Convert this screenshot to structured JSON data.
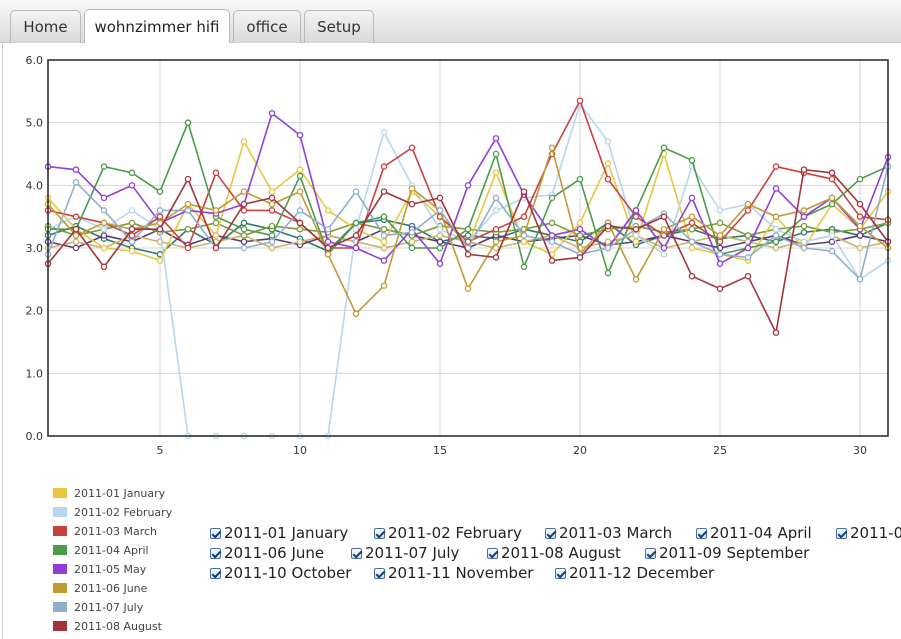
{
  "tabs": [
    {
      "label": "Home",
      "active": false
    },
    {
      "label": "wohnzimmer hifi",
      "active": true
    },
    {
      "label": "office",
      "active": false
    },
    {
      "label": "Setup",
      "active": false
    }
  ],
  "chart_data": {
    "type": "line",
    "title": "",
    "xlabel": "",
    "ylabel": "",
    "xlim": [
      1,
      31
    ],
    "ylim": [
      0,
      6
    ],
    "x_ticks": [
      "5",
      "10",
      "15",
      "20",
      "25",
      "30"
    ],
    "y_ticks": [
      "0.0",
      "1.0",
      "2.0",
      "3.0",
      "4.0",
      "5.0",
      "6.0"
    ],
    "grid": true,
    "legend": "bottom-left",
    "series": [
      {
        "name": "2011-01 January",
        "color": "#e8c73f",
        "values": [
          3.8,
          3.3,
          3.0,
          2.95,
          2.8,
          3.7,
          3.2,
          4.7,
          3.9,
          4.25,
          3.6,
          3.3,
          3.1,
          3.9,
          3.5,
          3.05,
          4.2,
          3.1,
          2.9,
          3.4,
          4.35,
          3.1,
          4.5,
          3.0,
          2.9,
          2.8,
          3.5,
          3.0,
          3.7,
          3.3,
          3.9
        ]
      },
      {
        "name": "2011-02 February",
        "color": "#b6d6ef",
        "values": [
          3.3,
          3.5,
          3.3,
          3.6,
          3.3,
          0.0,
          0.0,
          0.0,
          0.0,
          0.0,
          0.0,
          3.3,
          4.85,
          4.0,
          3.3,
          3.1,
          3.6,
          3.8,
          3.85,
          5.3,
          4.7,
          3.2,
          2.9,
          4.3,
          3.6,
          3.7,
          3.3,
          3.1,
          3.2,
          2.5,
          2.8
        ]
      },
      {
        "name": "2011-03 March",
        "color": "#c8413f",
        "values": [
          3.6,
          3.5,
          3.4,
          3.2,
          3.5,
          3.0,
          4.2,
          3.6,
          3.6,
          3.4,
          3.0,
          3.0,
          4.3,
          4.6,
          3.5,
          3.1,
          3.3,
          3.5,
          4.5,
          5.35,
          4.1,
          3.5,
          3.2,
          3.4,
          3.1,
          3.6,
          4.3,
          4.2,
          4.1,
          3.5,
          3.45
        ]
      },
      {
        "name": "2011-04 April",
        "color": "#4b9b4b",
        "values": [
          3.3,
          3.3,
          4.3,
          4.2,
          3.9,
          5.0,
          3.5,
          3.3,
          3.2,
          4.15,
          2.9,
          3.4,
          3.5,
          3.0,
          3.0,
          3.3,
          4.5,
          2.7,
          3.8,
          4.1,
          2.6,
          3.6,
          4.6,
          4.4,
          2.9,
          3.0,
          3.1,
          3.5,
          3.7,
          4.1,
          4.3
        ]
      },
      {
        "name": "2011-05 May",
        "color": "#8e3fd8",
        "values": [
          4.3,
          4.25,
          3.8,
          4.0,
          3.4,
          3.6,
          3.55,
          3.7,
          5.15,
          4.8,
          3.1,
          3.0,
          2.8,
          3.3,
          2.75,
          4.0,
          4.75,
          3.85,
          3.2,
          3.3,
          3.0,
          3.6,
          3.0,
          3.8,
          2.75,
          3.0,
          3.95,
          3.5,
          3.8,
          3.3,
          4.45
        ]
      },
      {
        "name": "2011-06 June",
        "color": "#c29a34",
        "values": [
          3.7,
          3.2,
          3.4,
          3.3,
          3.4,
          3.7,
          3.6,
          3.9,
          3.7,
          3.9,
          2.9,
          1.95,
          2.4,
          3.95,
          3.6,
          2.35,
          3.1,
          3.2,
          4.6,
          2.9,
          3.4,
          2.5,
          3.3,
          3.5,
          3.2,
          3.7,
          3.5,
          3.6,
          3.8,
          3.35,
          3.0
        ]
      },
      {
        "name": "2011-07 July",
        "color": "#8faecc",
        "values": [
          2.9,
          4.05,
          3.6,
          3.1,
          3.6,
          3.6,
          3.0,
          3.0,
          3.1,
          3.6,
          3.3,
          3.9,
          3.2,
          3.25,
          3.6,
          3.0,
          3.8,
          3.2,
          3.1,
          2.9,
          3.0,
          3.3,
          3.55,
          3.1,
          2.9,
          2.85,
          3.2,
          3.0,
          2.95,
          2.5,
          4.3
        ]
      },
      {
        "name": "2011-08 August",
        "color": "#a3333c",
        "values": [
          2.75,
          3.3,
          2.7,
          3.3,
          3.3,
          4.1,
          3.0,
          3.7,
          3.8,
          3.4,
          3.0,
          3.2,
          3.9,
          3.7,
          3.8,
          2.9,
          2.85,
          3.9,
          2.8,
          2.85,
          3.35,
          3.3,
          3.5,
          2.55,
          2.35,
          2.55,
          1.65,
          4.25,
          4.2,
          3.7,
          3.1
        ]
      },
      {
        "name": "2011-09 September",
        "color": "#2f7a6a",
        "values": [
          3.2,
          3.35,
          3.15,
          3.0,
          2.9,
          3.3,
          3.05,
          3.4,
          3.3,
          3.15,
          2.95,
          3.4,
          3.45,
          3.35,
          3.1,
          3.2,
          3.15,
          3.3,
          3.2,
          3.1,
          3.4,
          3.05,
          3.2,
          3.3,
          3.15,
          3.2,
          3.1,
          3.25,
          3.3,
          3.2,
          3.4
        ]
      },
      {
        "name": "2011-10 October",
        "color": "#5a3a7a",
        "values": [
          3.1,
          3.0,
          3.2,
          3.1,
          3.3,
          3.05,
          3.2,
          3.1,
          3.15,
          3.05,
          3.2,
          3.1,
          3.3,
          3.2,
          3.1,
          3.0,
          3.2,
          3.1,
          3.15,
          3.2,
          3.05,
          3.1,
          3.2,
          3.1,
          3.0,
          3.1,
          3.2,
          3.05,
          3.1,
          3.2,
          3.1
        ]
      },
      {
        "name": "2011-11 November",
        "color": "#c9b36a",
        "values": [
          3.0,
          3.1,
          3.0,
          3.2,
          3.1,
          3.0,
          3.1,
          3.2,
          3.0,
          3.1,
          3.2,
          3.1,
          3.0,
          3.1,
          3.2,
          3.1,
          3.0,
          3.1,
          3.2,
          3.0,
          3.1,
          3.2,
          3.0,
          3.1,
          3.2,
          3.1,
          3.0,
          3.1,
          3.2,
          3.0,
          3.1
        ]
      },
      {
        "name": "2011-12 December",
        "color": "#7d9c3a",
        "values": [
          3.35,
          3.2,
          3.3,
          3.4,
          3.25,
          3.3,
          3.4,
          3.2,
          3.35,
          3.3,
          3.25,
          3.4,
          3.3,
          3.2,
          3.35,
          3.3,
          3.25,
          3.3,
          3.4,
          3.2,
          3.3,
          3.35,
          3.25,
          3.3,
          3.4,
          3.2,
          3.3,
          3.35,
          3.25,
          3.3,
          3.4
        ]
      }
    ]
  },
  "legend_items": [
    {
      "label": "2011-01 January",
      "color": "#e8c73f"
    },
    {
      "label": "2011-02 February",
      "color": "#b6d6ef"
    },
    {
      "label": "2011-03 March",
      "color": "#c8413f"
    },
    {
      "label": "2011-04 April",
      "color": "#4b9b4b"
    },
    {
      "label": "2011-05 May",
      "color": "#8e3fd8"
    },
    {
      "label": "2011-06 June",
      "color": "#c29a34"
    },
    {
      "label": "2011-07 July",
      "color": "#8faecc"
    },
    {
      "label": "2011-08 August",
      "color": "#a3333c"
    }
  ],
  "toggles": [
    {
      "label": "2011-01 January",
      "checked": true
    },
    {
      "label": "2011-02 February",
      "checked": true
    },
    {
      "label": "2011-03 March",
      "checked": true
    },
    {
      "label": "2011-04 April",
      "checked": true
    },
    {
      "label": "2011-0",
      "checked": true
    },
    {
      "label": "2011-06 June",
      "checked": true
    },
    {
      "label": "2011-07 July",
      "checked": true
    },
    {
      "label": "2011-08 August",
      "checked": true
    },
    {
      "label": "2011-09 September",
      "checked": true
    },
    {
      "label": "2011-10 October",
      "checked": true
    },
    {
      "label": "2011-11 November",
      "checked": true
    },
    {
      "label": "2011-12 December",
      "checked": true
    }
  ]
}
